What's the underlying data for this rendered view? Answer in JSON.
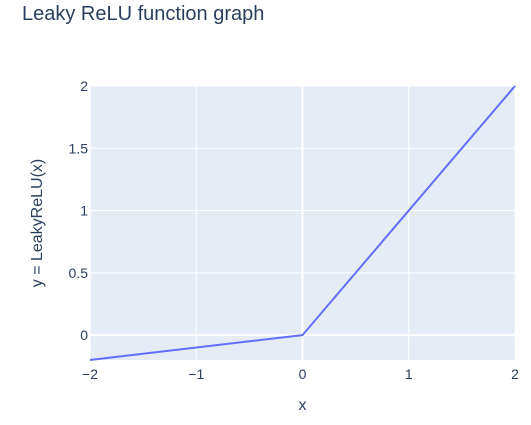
{
  "chart_data": {
    "type": "line",
    "title": "Leaky ReLU function graph",
    "xlabel": "x",
    "ylabel": "y = LeakyReLU(x)",
    "xlim": [
      -2,
      2
    ],
    "ylim": [
      -0.2,
      2
    ],
    "grid": true,
    "x_ticks": [
      -2,
      -1,
      0,
      1,
      2
    ],
    "x_tick_labels": [
      "−2",
      "−1",
      "0",
      "1",
      "2"
    ],
    "y_ticks": [
      0,
      0.5,
      1,
      1.5,
      2
    ],
    "y_tick_labels": [
      "0",
      "0.5",
      "1",
      "1.5",
      "2"
    ],
    "series": [
      {
        "x": [
          -2,
          0,
          2
        ],
        "y": [
          -0.2,
          0,
          2
        ]
      }
    ],
    "colors": {
      "line": "#636efa",
      "plot_bg": "#e5ecf6",
      "grid": "#ffffff",
      "text": "#2a3f5f"
    }
  }
}
